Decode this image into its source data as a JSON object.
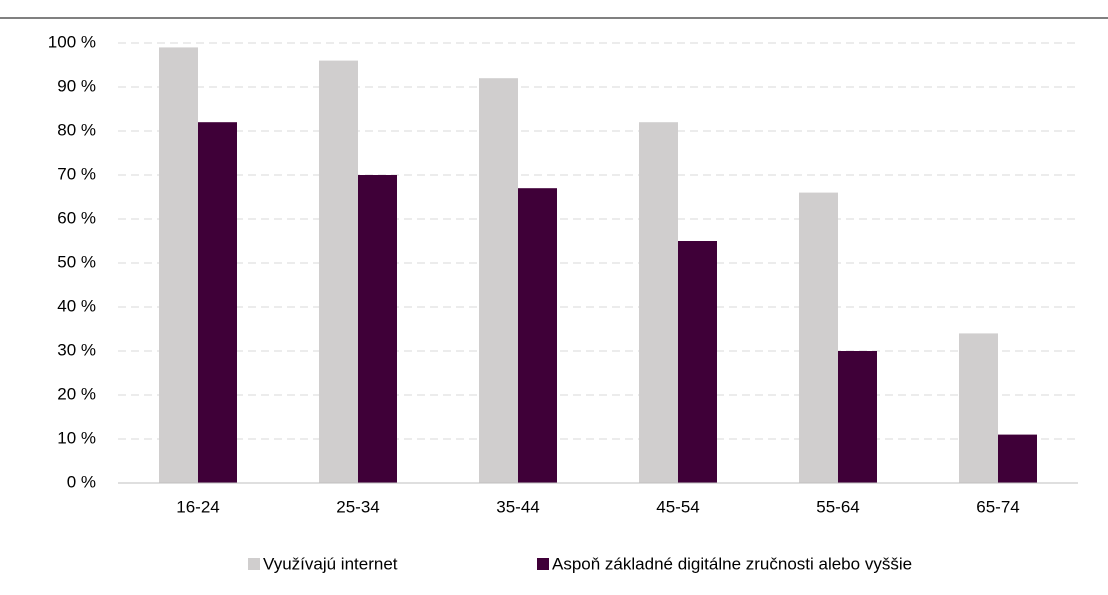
{
  "chart_data": {
    "type": "bar",
    "categories": [
      "16-24",
      "25-34",
      "35-44",
      "45-54",
      "55-64",
      "65-74"
    ],
    "series": [
      {
        "name": "Využívajú internet",
        "color": "#d0cece",
        "values": [
          99,
          96,
          92,
          82,
          66,
          34
        ]
      },
      {
        "name": "Aspoň základné digitálne zručnosti alebo vyššie",
        "color": "#3f0038",
        "values": [
          82,
          70,
          67,
          55,
          30,
          11
        ]
      }
    ],
    "ylim": [
      0,
      100
    ],
    "yticks": [
      {
        "value": 0,
        "label": "0 %"
      },
      {
        "value": 10,
        "label": "10 %"
      },
      {
        "value": 20,
        "label": "20 %"
      },
      {
        "value": 30,
        "label": "30 %"
      },
      {
        "value": 40,
        "label": "40 %"
      },
      {
        "value": 50,
        "label": "50 %"
      },
      {
        "value": 60,
        "label": "60 %"
      },
      {
        "value": 70,
        "label": "70 %"
      },
      {
        "value": 80,
        "label": "80 %"
      },
      {
        "value": 90,
        "label": "90 %"
      },
      {
        "value": 100,
        "label": "100 %"
      }
    ],
    "grid": true,
    "legend": "bottom"
  }
}
